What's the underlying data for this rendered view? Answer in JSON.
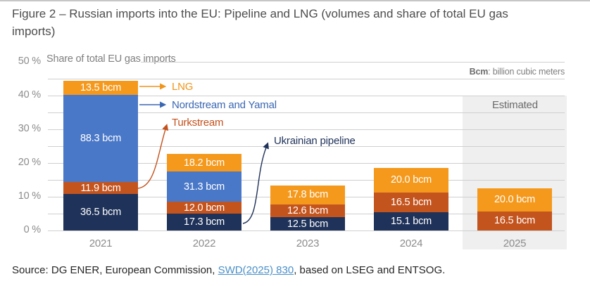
{
  "figure": {
    "title": "Figure 2 – Russian imports into the EU: Pipeline and LNG (volumes and share of total EU gas imports)"
  },
  "chart": {
    "axis_note": "Share of total EU gas imports",
    "unit_note_term": "Bcm",
    "unit_note_def": ": billion cubic meters",
    "estimated_label": "Estimated",
    "colors": {
      "lng": "#F5991D",
      "nordstream": "#4A78C8",
      "turkstream": "#C4541E",
      "ukrainian": "#1F3259",
      "legend_text_lng": "#F0941A",
      "legend_text_nordstream": "#3A67B2",
      "legend_text_turkstream": "#C4511C",
      "legend_text_ukrainian": "#1F3259",
      "gridline": "#cfcfcf",
      "estimated_bg": "#efefef"
    }
  },
  "chart_data": {
    "type": "bar",
    "stacked": true,
    "title": "Russian imports into the EU: Pipeline and LNG (volumes and share of total EU gas imports)",
    "ylabel": "Share of total EU gas imports",
    "unit": "bcm",
    "ylim": [
      0,
      50
    ],
    "grid_interval_pct": 5,
    "yticks": [
      {
        "pct": 0,
        "label": "0 %"
      },
      {
        "pct": 10,
        "label": "10 %"
      },
      {
        "pct": 20,
        "label": "20 %"
      },
      {
        "pct": 30,
        "label": "30 %"
      },
      {
        "pct": 40,
        "label": "40 %"
      },
      {
        "pct": 50,
        "label": "50 %"
      }
    ],
    "categories": [
      "2021",
      "2022",
      "2023",
      "2024",
      "2025"
    ],
    "estimated_categories": [
      "2025"
    ],
    "series": [
      {
        "name": "Ukrainian pipeline",
        "key": "ukrainian",
        "values_bcm": [
          36.5,
          17.3,
          12.5,
          15.1,
          null
        ],
        "labels": [
          "36.5 bcm",
          "17.3 bcm",
          "12.5 bcm",
          "15.1 bcm",
          null
        ],
        "share_pct": [
          10.8,
          5.0,
          3.9,
          5.4,
          null
        ]
      },
      {
        "name": "Turkstream",
        "key": "turkstream",
        "values_bcm": [
          11.9,
          12.0,
          12.6,
          16.5,
          16.5
        ],
        "labels": [
          "11.9 bcm",
          "12.0 bcm",
          "12.6 bcm",
          "16.5 bcm",
          "16.5 bcm"
        ],
        "share_pct": [
          3.5,
          3.5,
          3.9,
          5.9,
          5.7
        ]
      },
      {
        "name": "Nordstream and Yamal",
        "key": "nordstream",
        "values_bcm": [
          88.3,
          31.3,
          null,
          null,
          null
        ],
        "labels": [
          "88.3 bcm",
          "31.3 bcm",
          null,
          null,
          null
        ],
        "share_pct": [
          26.0,
          9.0,
          null,
          null,
          null
        ]
      },
      {
        "name": "LNG",
        "key": "lng",
        "values_bcm": [
          13.5,
          18.2,
          17.8,
          20.0,
          20.0
        ],
        "labels": [
          "13.5 bcm",
          "18.2 bcm",
          "17.8 bcm",
          "20.0 bcm",
          "20.0 bcm"
        ],
        "share_pct": [
          4.0,
          5.2,
          5.5,
          7.2,
          6.9
        ]
      }
    ],
    "total_share_pct_by_year": [
      44.3,
      22.7,
      13.3,
      18.5,
      12.6
    ],
    "legend_position": "annotated-arrows"
  },
  "legend": [
    {
      "name": "LNG",
      "key": "lng"
    },
    {
      "name": "Nordstream and Yamal",
      "key": "nordstream"
    },
    {
      "name": "Turkstream",
      "key": "turkstream"
    },
    {
      "name": "Ukrainian pipeline",
      "key": "ukrainian"
    }
  ],
  "source": {
    "prefix": "Source: DG ENER, European Commission, ",
    "link_text": "SWD(2025) 830",
    "suffix": ", based on LSEG and ENTSOG."
  }
}
